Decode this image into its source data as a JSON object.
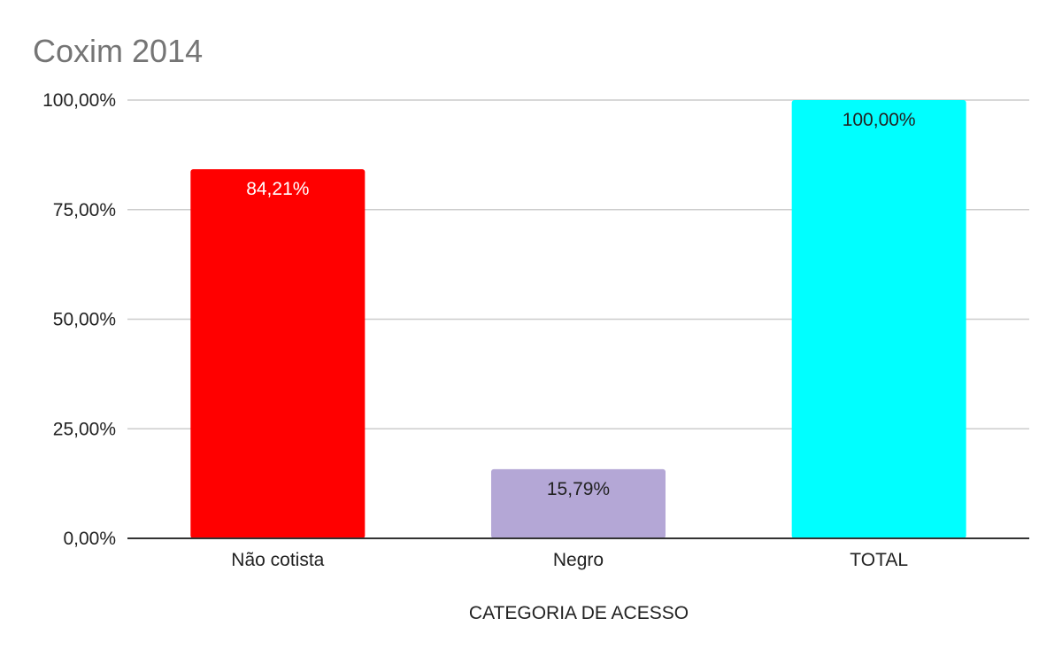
{
  "chart_data": {
    "type": "bar",
    "title": "Coxim 2014",
    "xlabel": "CATEGORIA DE ACESSO",
    "ylabel": "",
    "categories": [
      "Não cotista",
      "Negro",
      "TOTAL"
    ],
    "values": [
      84.21,
      15.79,
      100.0
    ],
    "data_labels": [
      "84,21%",
      "15,79%",
      "100,00%"
    ],
    "bar_colors": [
      "#ff0000",
      "#b4a7d6",
      "#00ffff"
    ],
    "data_label_colors": [
      "#ffffff",
      "#222222",
      "#222222"
    ],
    "ylim": [
      0,
      100
    ],
    "yticks": [
      0,
      25,
      50,
      75,
      100
    ],
    "ytick_labels": [
      "0,00%",
      "25,00%",
      "50,00%",
      "75,00%",
      "100,00%"
    ],
    "grid": true,
    "legend": "none"
  }
}
